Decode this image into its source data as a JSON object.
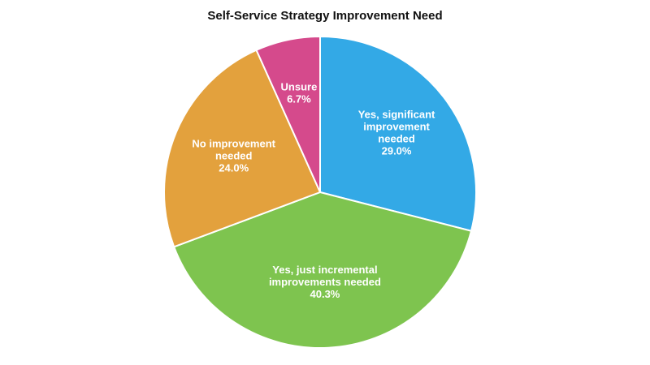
{
  "chart_data": {
    "type": "pie",
    "title": "Self-Service Strategy Improvement Need",
    "slices": [
      {
        "label": "Yes, significant improvement needed",
        "label_lines": [
          "Yes, significant",
          "improvement",
          "needed"
        ],
        "value": 29.0,
        "value_label": "29.0%",
        "color": "#33a9e6"
      },
      {
        "label": "Yes, just incremental improvements needed",
        "label_lines": [
          "Yes, just incremental",
          "improvements needed"
        ],
        "value": 40.3,
        "value_label": "40.3%",
        "color": "#7ec44f"
      },
      {
        "label": "No improvement needed",
        "label_lines": [
          "No improvement",
          "needed"
        ],
        "value": 24.0,
        "value_label": "24.0%",
        "color": "#e3a13d"
      },
      {
        "label": "Unsure",
        "label_lines": [
          "Unsure"
        ],
        "value": 6.7,
        "value_label": "6.7%",
        "color": "#d54a8c"
      }
    ],
    "start_angle": "12 o'clock",
    "direction": "clockwise",
    "legend": "none"
  }
}
